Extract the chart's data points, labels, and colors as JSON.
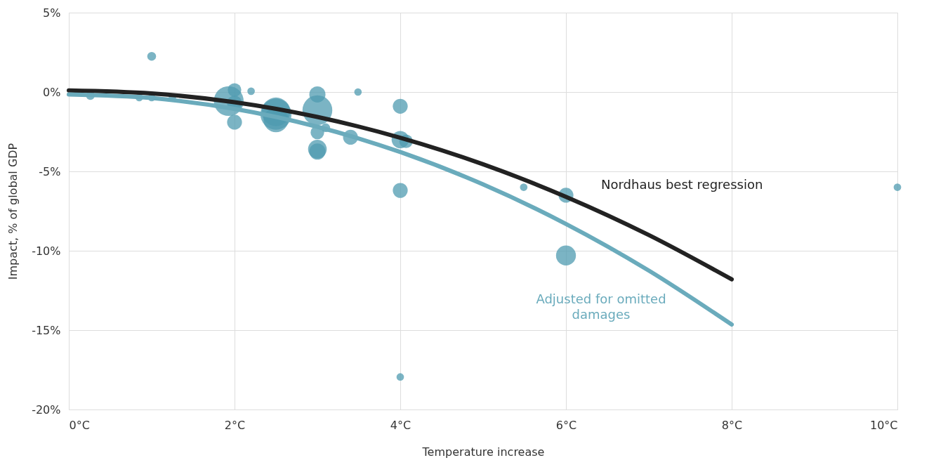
{
  "chart_data": {
    "type": "bubble",
    "xlabel": "Temperature increase",
    "ylabel": "Impact, % of global GDP",
    "xlim": [
      0,
      10
    ],
    "ylim": [
      -20,
      5
    ],
    "xticks": [
      {
        "value": 0,
        "label": "0°C"
      },
      {
        "value": 2,
        "label": "2°C"
      },
      {
        "value": 4,
        "label": "4°C"
      },
      {
        "value": 6,
        "label": "6°C"
      },
      {
        "value": 8,
        "label": "8°C"
      },
      {
        "value": 10,
        "label": "10°C"
      }
    ],
    "yticks": [
      {
        "value": -20,
        "label": "-20%"
      },
      {
        "value": -15,
        "label": "-15%"
      },
      {
        "value": -10,
        "label": "-10%"
      },
      {
        "value": -5,
        "label": "-5%"
      },
      {
        "value": 0,
        "label": "0%"
      },
      {
        "value": 5,
        "label": "5%"
      }
    ],
    "grid": true,
    "series": [
      {
        "color": "#4f9bb0",
        "x": [
          0.26,
          0.85,
          1.0,
          1.0,
          1.25,
          1.93,
          2.0,
          2.0,
          2.0,
          2.2,
          2.5,
          2.5,
          2.5,
          3.0,
          3.0,
          3.0,
          3.0,
          3.0,
          3.1,
          3.4,
          3.49,
          4.0,
          4.0,
          4.07,
          4.0,
          4.0,
          5.49,
          6.0,
          6.0,
          10.0
        ],
        "values": [
          -0.22,
          -0.35,
          2.25,
          -0.35,
          -0.35,
          -0.57,
          0.13,
          -0.7,
          -1.9,
          0.05,
          -1.25,
          -1.4,
          -1.75,
          -0.15,
          -1.15,
          -2.55,
          -3.6,
          -3.75,
          -2.25,
          -2.85,
          0.0,
          -0.9,
          -3.0,
          -3.1,
          -6.2,
          -17.95,
          -6.0,
          -6.5,
          -10.3,
          -6.0
        ],
        "sizes": [
          0.08,
          0.058,
          0.08,
          0.058,
          0.058,
          0.92,
          0.19,
          0.23,
          0.23,
          0.058,
          0.85,
          1.0,
          0.64,
          0.27,
          0.92,
          0.19,
          0.36,
          0.27,
          0.08,
          0.23,
          0.058,
          0.23,
          0.31,
          0.19,
          0.23,
          0.058,
          0.058,
          0.23,
          0.41,
          0.058
        ]
      },
      {
        "type": "line",
        "name": "Nordhaus best regression",
        "color": "#222222",
        "x": [
          0,
          1,
          2,
          3,
          4,
          5,
          6,
          7,
          8
        ],
        "values": [
          0.1,
          -0.09,
          -0.64,
          -1.57,
          -2.88,
          -4.55,
          -6.6,
          -9.01,
          -11.8
        ]
      },
      {
        "type": "line",
        "name": "Adjusted for omitted\ndamages",
        "color": "#6aabbc",
        "x": [
          0,
          1,
          2,
          3,
          4,
          5,
          6,
          7,
          8
        ],
        "values": [
          -0.15,
          -0.38,
          -1.06,
          -2.19,
          -3.78,
          -5.82,
          -8.31,
          -11.25,
          -14.65
        ]
      }
    ]
  }
}
